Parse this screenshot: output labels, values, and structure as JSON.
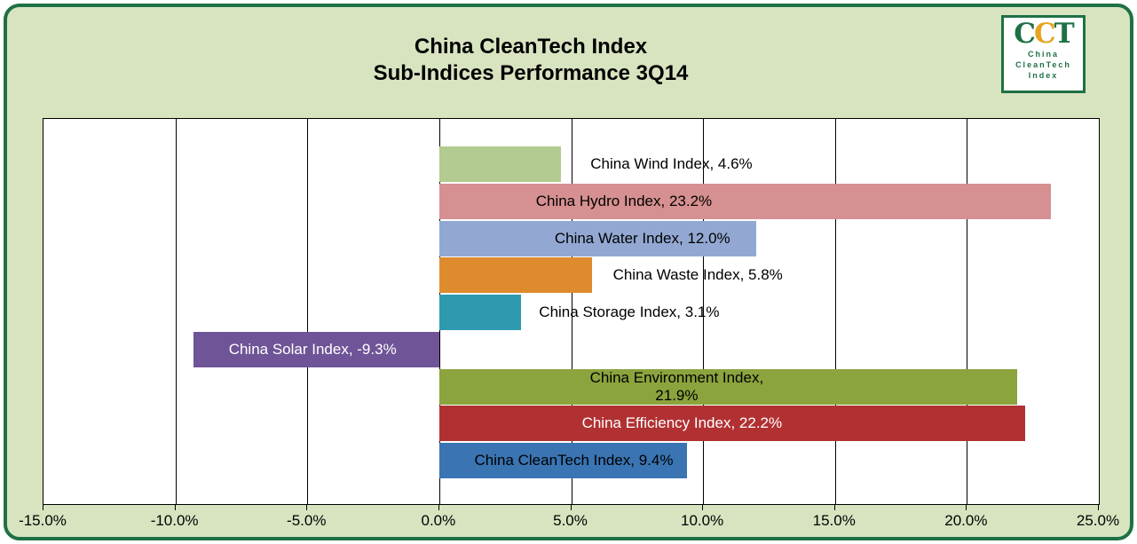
{
  "title": {
    "line1": "China CleanTech Index",
    "line2": "Sub-Indices Performance 3Q14"
  },
  "logo": {
    "letters": [
      "C",
      "C",
      "T"
    ],
    "lines": [
      "China",
      "CleanTech",
      "Index"
    ]
  },
  "colors": {
    "frame_border_green": "#1e7145",
    "frame_background_green": "#d8e4c0",
    "logo_gold": "#e6a41e",
    "plot_background": "#ffffff",
    "gridline": "#000000"
  },
  "chart_data": {
    "type": "bar",
    "orientation": "horizontal",
    "title": "China CleanTech Index Sub-Indices Performance 3Q14",
    "xlabel": "",
    "ylabel": "",
    "grid": true,
    "xlim": [
      -15,
      25
    ],
    "axis": {
      "min": -15,
      "max": 25,
      "ticks": [
        {
          "value": -15,
          "label": "-15.0%"
        },
        {
          "value": -10,
          "label": "-10.0%"
        },
        {
          "value": -5,
          "label": "-5.0%"
        },
        {
          "value": 0,
          "label": "0.0%"
        },
        {
          "value": 5,
          "label": "5.0%"
        },
        {
          "value": 10,
          "label": "10.0%"
        },
        {
          "value": 15,
          "label": "15.0%"
        },
        {
          "value": 20,
          "label": "20.0%"
        },
        {
          "value": 25,
          "label": "25.0%"
        }
      ]
    },
    "bars": [
      {
        "name": "China Wind Index",
        "value": 4.6,
        "color": "#b3cb90",
        "label_lines": [
          "China Wind Index, 4.6%"
        ],
        "label_color": "#000000",
        "label_center_pct": 8.8
      },
      {
        "name": "China Hydro Index",
        "value": 23.2,
        "color": "#d69091",
        "label_lines": [
          "China Hydro Index, 23.2%"
        ],
        "label_color": "#000000",
        "label_center_pct": 7.0
      },
      {
        "name": "China Water Index",
        "value": 12.0,
        "color": "#92a8d3",
        "label_lines": [
          "China Water Index, 12.0%"
        ],
        "label_color": "#000000",
        "label_center_pct": 7.7
      },
      {
        "name": "China Waste Index",
        "value": 5.8,
        "color": "#de8b2e",
        "label_lines": [
          "China Waste Index, 5.8%"
        ],
        "label_color": "#000000",
        "label_center_pct": 9.8
      },
      {
        "name": "China Storage Index",
        "value": 3.1,
        "color": "#2f9aaf",
        "label_lines": [
          "China Storage Index, 3.1%"
        ],
        "label_color": "#000000",
        "label_center_pct": 7.2
      },
      {
        "name": "China Solar Index",
        "value": -9.3,
        "color": "#6f5497",
        "label_lines": [
          "China Solar Index, -9.3%"
        ],
        "label_color": "#ffffff",
        "label_center_pct": -4.8
      },
      {
        "name": "China Environment Index",
        "value": 21.9,
        "color": "#8ba43d",
        "label_lines": [
          "China Environment Index,",
          "21.9%"
        ],
        "label_color": "#000000",
        "label_center_pct": 9.0
      },
      {
        "name": "China Efficiency Index",
        "value": 22.2,
        "color": "#b13133",
        "label_lines": [
          "China Efficiency Index, 22.2%"
        ],
        "label_color": "#ffffff",
        "label_center_pct": 9.2
      },
      {
        "name": "China CleanTech Index",
        "value": 9.4,
        "color": "#3a74b3",
        "label_lines": [
          "China CleanTech Index, 9.4%"
        ],
        "label_color": "#000000",
        "label_center_pct": 5.1
      }
    ]
  }
}
